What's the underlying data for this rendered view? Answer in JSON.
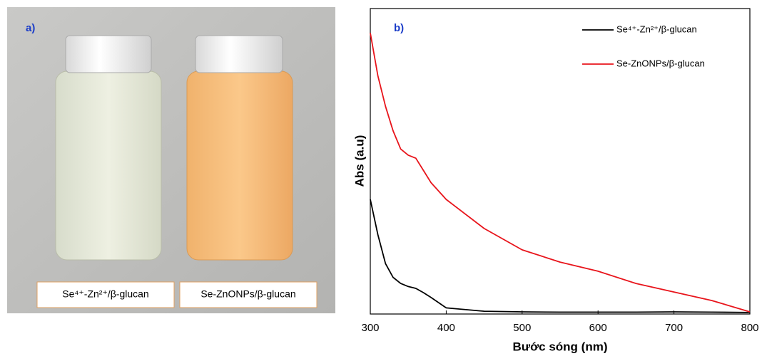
{
  "photo": {
    "panel_label": "a)",
    "labels": [
      "Se⁴⁺-Zn²⁺/β-glucan",
      "Se-ZnONPs/β-glucan"
    ]
  },
  "chart_data": {
    "type": "line",
    "panel_label": "b)",
    "x_label": "Bước sóng (nm)",
    "y_label": "Abs (a.u)",
    "x": [
      300,
      310,
      320,
      330,
      340,
      350,
      360,
      370,
      380,
      400,
      450,
      500,
      550,
      600,
      650,
      700,
      750,
      800
    ],
    "series": [
      {
        "name": "Se⁴⁺-Zn²⁺/β-glucan",
        "color": "#000000",
        "values": [
          0.375,
          0.26,
          0.165,
          0.12,
          0.1,
          0.09,
          0.084,
          0.07,
          0.054,
          0.02,
          0.009,
          0.007,
          0.006,
          0.006,
          0.006,
          0.007,
          0.006,
          0.005
        ]
      },
      {
        "name": "Se-ZnONPs/β-glucan",
        "color": "#e8141b",
        "values": [
          0.92,
          0.78,
          0.68,
          0.6,
          0.54,
          0.52,
          0.51,
          0.47,
          0.43,
          0.375,
          0.28,
          0.21,
          0.17,
          0.14,
          0.1,
          0.072,
          0.044,
          0.007
        ]
      }
    ],
    "xlim": [
      300,
      800
    ],
    "xticks": [
      300,
      400,
      500,
      600,
      700,
      800
    ],
    "ylim": [
      0,
      1
    ],
    "legend": "upper right",
    "grid": false
  }
}
